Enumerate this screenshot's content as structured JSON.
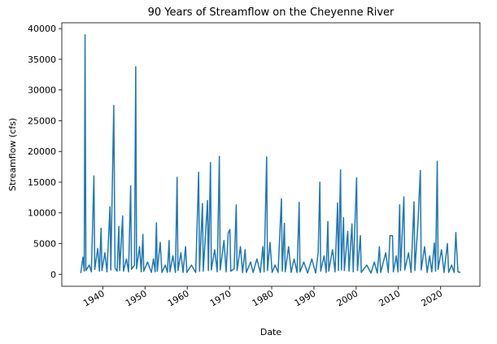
{
  "chart_data": {
    "type": "line",
    "title": "90 Years of Streamflow on the Cheyenne River",
    "xlabel": "Date",
    "ylabel": "Streamflow (cfs)",
    "color": "#1f77b4",
    "xlim": [
      1930.3,
      2029.3
    ],
    "xticks": [
      1940,
      1950,
      1960,
      1970,
      1980,
      1990,
      2000,
      2010,
      2020
    ],
    "ylim": [
      -1950,
      40950
    ],
    "yticks": [
      0,
      5000,
      10000,
      15000,
      20000,
      25000,
      30000,
      35000,
      40000
    ],
    "x": [
      1934.8,
      1935.3,
      1935.6,
      1935.8,
      1936.0,
      1936.8,
      1937.3,
      1937.9,
      1938.1,
      1938.8,
      1939.2,
      1939.6,
      1939.8,
      1940.5,
      1941.0,
      1941.7,
      1941.9,
      1942.6,
      1942.9,
      1943.4,
      1943.8,
      1944.0,
      1944.7,
      1944.9,
      1945.6,
      1946.1,
      1946.6,
      1946.8,
      1947.5,
      1947.8,
      1948.0,
      1948.7,
      1949.1,
      1949.5,
      1949.7,
      1950.6,
      1951.5,
      1952.0,
      1952.4,
      1952.7,
      1952.9,
      1953.6,
      1954.0,
      1954.8,
      1955.3,
      1955.7,
      1955.9,
      1956.6,
      1957.2,
      1957.6,
      1957.8,
      1958.5,
      1959.0,
      1959.6,
      1959.9,
      1961.0,
      1962.0,
      1962.7,
      1962.9,
      1963.6,
      1963.8,
      1964.8,
      1965.0,
      1965.5,
      1965.7,
      1966.5,
      1967.1,
      1967.6,
      1967.8,
      1968.7,
      1969.2,
      1969.7,
      1970.1,
      1970.3,
      1971.1,
      1971.6,
      1971.8,
      1972.6,
      1973.1,
      1973.7,
      1974.0,
      1975.0,
      1975.6,
      1976.5,
      1977.3,
      1977.9,
      1978.2,
      1978.8,
      1979.0,
      1979.6,
      1980.1,
      1980.8,
      1981.5,
      1982.3,
      1982.5,
      1983.0,
      1983.2,
      1984.0,
      1984.6,
      1985.3,
      1986.0,
      1986.5,
      1986.7,
      1987.6,
      1988.5,
      1989.5,
      1990.4,
      1991.0,
      1991.4,
      1991.6,
      1992.4,
      1992.9,
      1993.3,
      1993.5,
      1994.4,
      1995.0,
      1995.6,
      1995.8,
      1996.3,
      1996.5,
      1997.0,
      1997.2,
      1998.0,
      1998.3,
      1999.0,
      1999.3,
      2000.1,
      2000.3,
      2001.0,
      2001.2,
      2002.5,
      2003.5,
      2004.3,
      2005.0,
      2005.5,
      2005.8,
      2007.0,
      2007.6,
      2008.0,
      2008.6,
      2008.8,
      2009.5,
      2009.9,
      2010.3,
      2010.5,
      2011.3,
      2011.5,
      2012.4,
      2013.0,
      2013.7,
      2013.9,
      2014.6,
      2015.2,
      2015.4,
      2016.2,
      2016.8,
      2017.4,
      2017.9,
      2018.5,
      2018.8,
      2019.2,
      2019.4,
      2020.2,
      2020.8,
      2021.6,
      2021.9,
      2022.6,
      2023.2,
      2023.6,
      2023.8,
      2024.1,
      2024.7
    ],
    "values": [
      200,
      2800,
      500,
      39000,
      600,
      1500,
      400,
      16000,
      800,
      4200,
      500,
      7500,
      600,
      3500,
      400,
      11000,
      700,
      27500,
      1000,
      500,
      7800,
      600,
      9500,
      500,
      2500,
      400,
      14400,
      800,
      1500,
      33800,
      900,
      4500,
      400,
      6500,
      500,
      2000,
      300,
      2500,
      400,
      8400,
      500,
      5200,
      300,
      1500,
      300,
      5500,
      400,
      3000,
      300,
      15800,
      600,
      3500,
      300,
      4500,
      300,
      1500,
      300,
      16600,
      500,
      11500,
      500,
      12000,
      600,
      18200,
      700,
      4000,
      400,
      19200,
      700,
      5500,
      400,
      6700,
      7300,
      500,
      900,
      11300,
      600,
      4500,
      300,
      4000,
      300,
      2000,
      300,
      2500,
      300,
      4500,
      400,
      19100,
      600,
      5200,
      300,
      1500,
      300,
      12300,
      500,
      8300,
      400,
      4500,
      300,
      2500,
      300,
      11700,
      400,
      2000,
      200,
      2500,
      200,
      3500,
      15000,
      500,
      3000,
      300,
      8600,
      500,
      4000,
      400,
      11600,
      600,
      17000,
      700,
      9200,
      600,
      7000,
      500,
      8200,
      400,
      15700,
      600,
      6300,
      300,
      1500,
      200,
      2000,
      200,
      4500,
      300,
      3500,
      300,
      6300,
      6300,
      400,
      3000,
      400,
      11300,
      600,
      12600,
      700,
      3500,
      300,
      11800,
      600,
      8000,
      16900,
      700,
      4500,
      300,
      3000,
      400,
      5100,
      500,
      18400,
      800,
      4000,
      300,
      5000,
      300,
      1500,
      300,
      6800,
      4000,
      400,
      300
    ]
  }
}
